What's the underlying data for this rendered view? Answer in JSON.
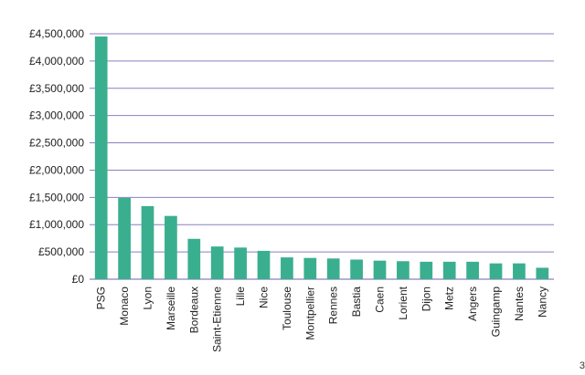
{
  "chart_data": {
    "type": "bar",
    "categories": [
      "PSG",
      "Monaco",
      "Lyon",
      "Marseille",
      "Bordeaux",
      "Saint-Etienne",
      "Lille",
      "Nice",
      "Toulouse",
      "Montpellier",
      "Rennes",
      "Bastia",
      "Caen",
      "Lorient",
      "Dijon",
      "Metz",
      "Angers",
      "Guingamp",
      "Nantes",
      "Nancy"
    ],
    "values": [
      4450000,
      1490000,
      1340000,
      1160000,
      740000,
      600000,
      580000,
      520000,
      400000,
      390000,
      380000,
      360000,
      340000,
      330000,
      320000,
      320000,
      320000,
      290000,
      290000,
      210000
    ],
    "ylim": [
      0,
      4500000
    ],
    "yticks": [
      0,
      500000,
      1000000,
      1500000,
      2000000,
      2500000,
      3000000,
      3500000,
      4000000,
      4500000
    ],
    "ytick_labels": [
      "£0",
      "£500,000",
      "£1,000,000",
      "£1,500,000",
      "£2,000,000",
      "£2,500,000",
      "£3,000,000",
      "£3,500,000",
      "£4,000,000",
      "£4,500,000"
    ],
    "grid": true,
    "bar_color": "#3aaf8f",
    "grid_color": "#8c7fc0"
  },
  "corner_note": "3"
}
